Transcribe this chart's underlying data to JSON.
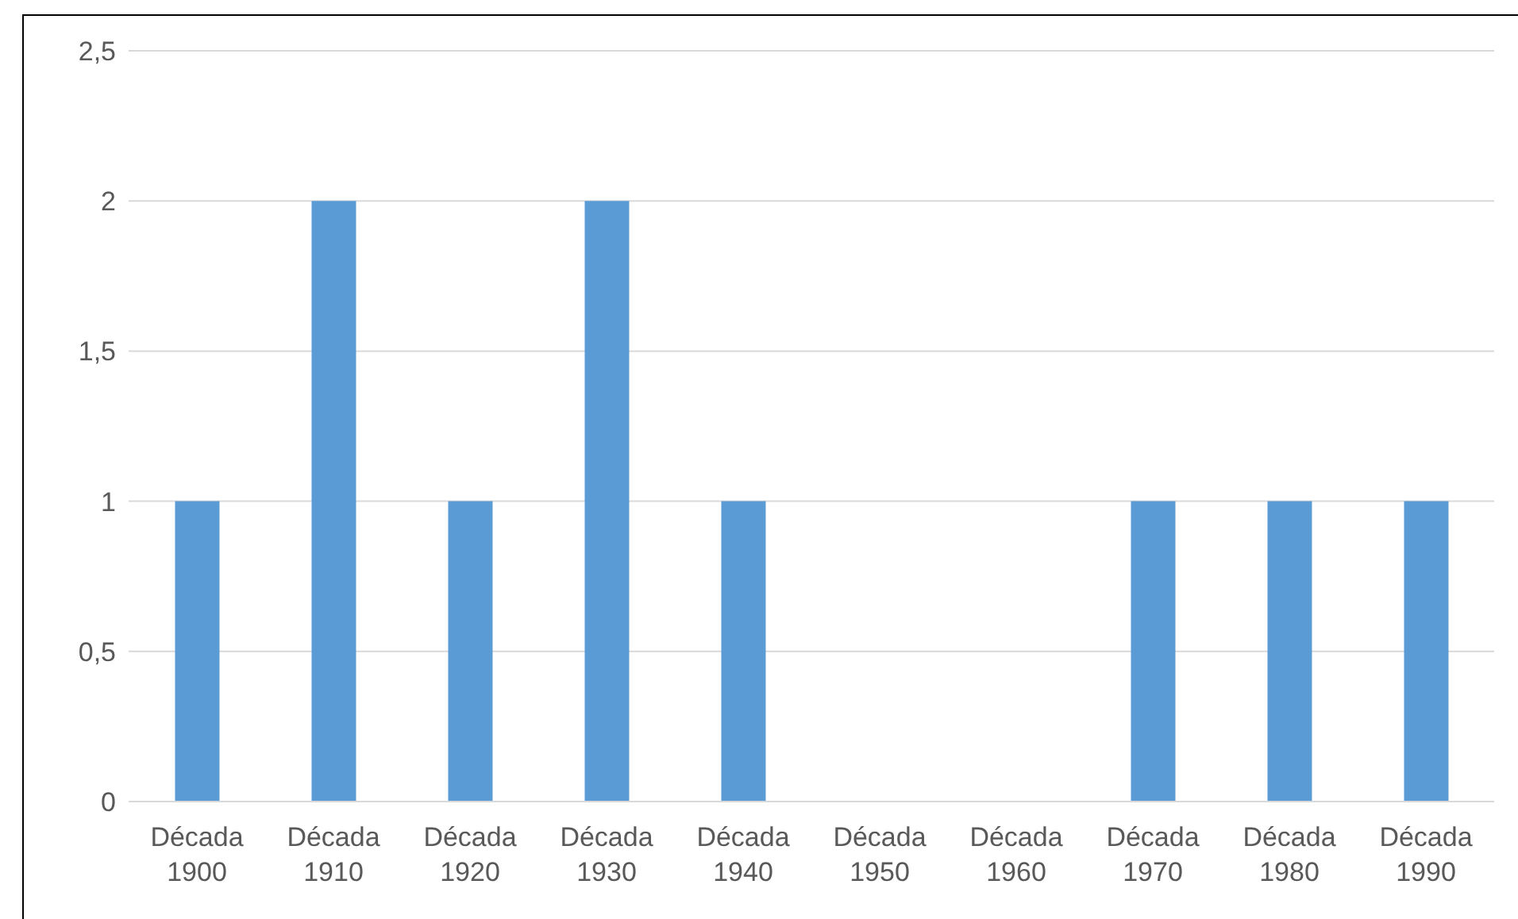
{
  "chart_data": {
    "type": "bar",
    "categories": [
      "Década 1900",
      "Década 1910",
      "Década 1920",
      "Década 1930",
      "Década 1940",
      "Década 1950",
      "Década 1960",
      "Década 1970",
      "Década 1980",
      "Década 1990"
    ],
    "values": [
      1,
      2,
      1,
      2,
      1,
      0,
      0,
      1,
      1,
      1
    ],
    "color": "#5b9bd5",
    "ylim": [
      0,
      2.5
    ],
    "yticks": [
      0,
      {
        "value": 0.5,
        "label": "0,5"
      },
      1,
      {
        "value": 1.5,
        "label": "1,5"
      },
      2,
      {
        "value": 2.5,
        "label": "2,5"
      }
    ],
    "grid": "y"
  }
}
